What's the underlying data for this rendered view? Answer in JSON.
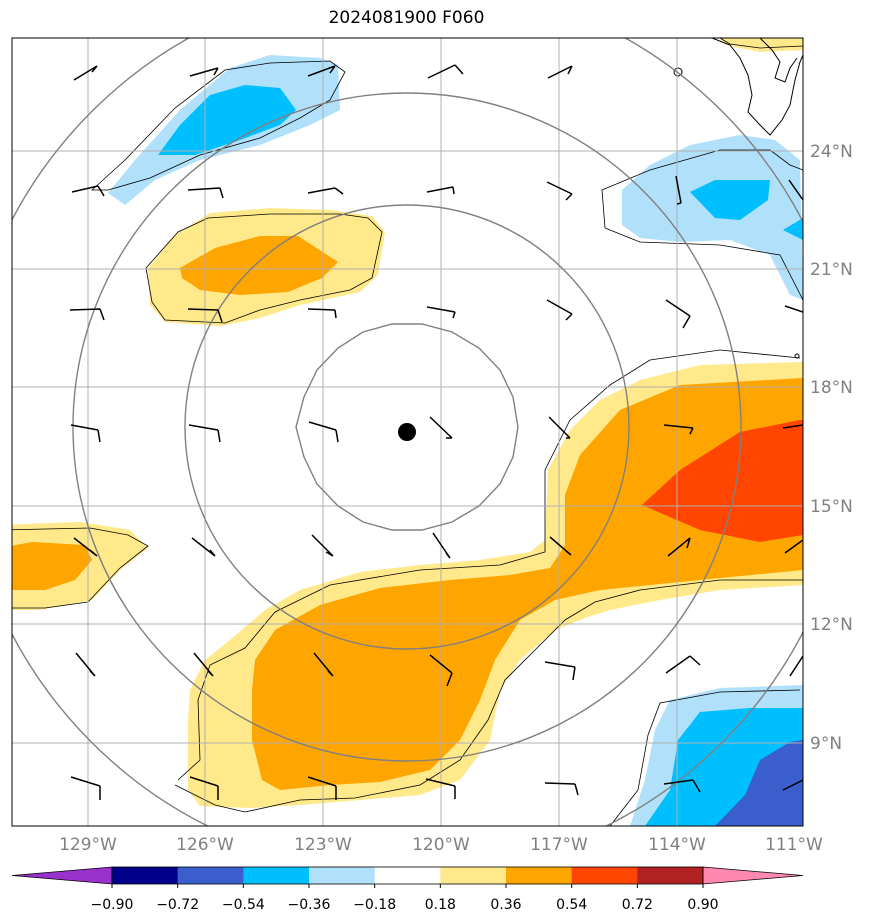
{
  "title": "2024081900 F060",
  "lat_labels": [
    "24°N",
    "21°N",
    "18°N",
    "15°N",
    "12°N",
    "9°N"
  ],
  "lon_labels": [
    "129°W",
    "126°W",
    "123°W",
    "120°W",
    "117°W",
    "114°W",
    "111°W"
  ],
  "colorbar": {
    "levels": [
      "−0.90",
      "−0.72",
      "−0.54",
      "−0.36",
      "−0.18",
      "0.18",
      "0.36",
      "0.54",
      "0.72",
      "0.90"
    ],
    "colors": [
      "#9932cc",
      "#00008b",
      "#3a5fcd",
      "#00bfff",
      "#b0e0fa",
      "#ffffff",
      "#ffe98a",
      "#ffa500",
      "#ff4500",
      "#b22222",
      "#ff88b0"
    ]
  },
  "fill_colors": {
    "light_yellow": "#ffe98a",
    "orange": "#ffa500",
    "red_orange": "#ff4500",
    "light_blue": "#b0e0fa",
    "deep_sky_blue": "#00bfff",
    "royal_blue": "#3a5fcd"
  },
  "storm_center": {
    "lon": -120.9,
    "lat": 16.9
  }
}
